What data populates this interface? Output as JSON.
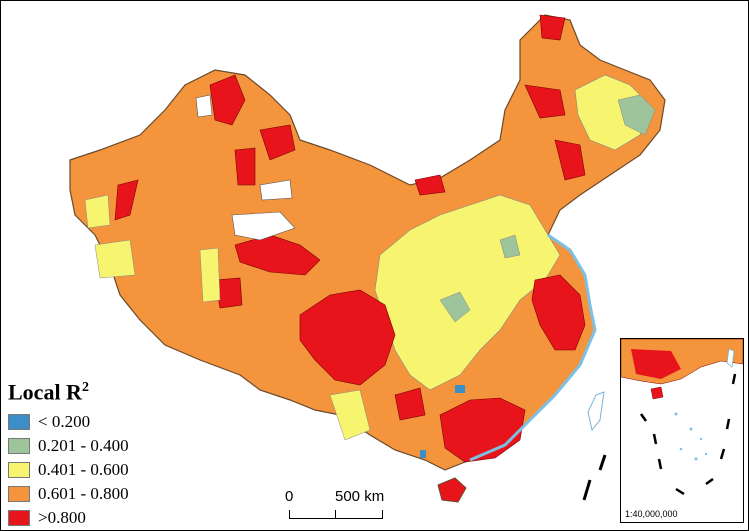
{
  "legend": {
    "title": "Local R",
    "title_superscript": "2",
    "classes": [
      {
        "label": "< 0.200",
        "color": "#3b8fc6"
      },
      {
        "label": "0.201 - 0.400",
        "color": "#9dc49a"
      },
      {
        "label": "0.401 - 0.600",
        "color": "#f7f56f"
      },
      {
        "label": "0.601 - 0.800",
        "color": "#f4943c"
      },
      {
        "label": ">0.800",
        "color": "#e8141c"
      }
    ]
  },
  "scale_bar": {
    "start_label": "0",
    "end_label": "500 km"
  },
  "inset": {
    "scale_label": "1:40,000,000"
  },
  "colors": {
    "sea": "#bfe4f5",
    "border": "#555555"
  }
}
